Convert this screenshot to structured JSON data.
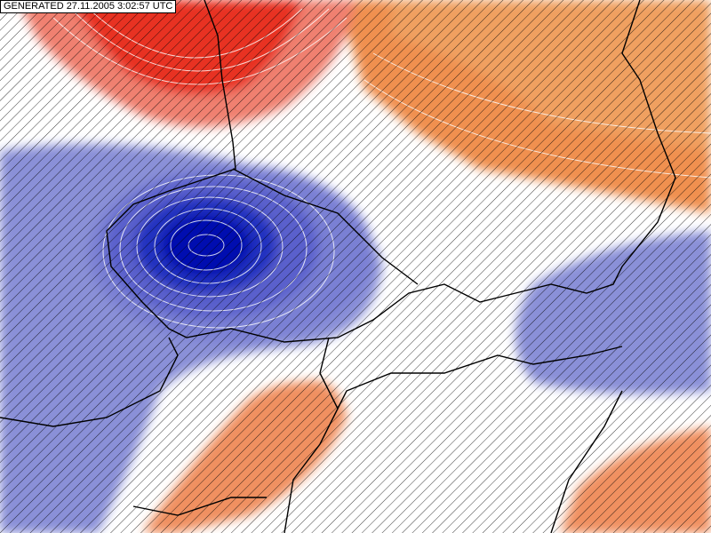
{
  "header": {
    "label": "GENERATED 27.11.2005 3:02:57 UTC"
  }
}
